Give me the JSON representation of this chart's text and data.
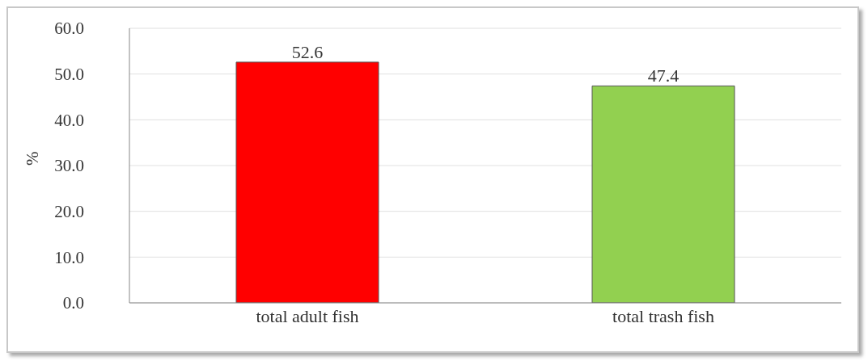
{
  "chart_data": {
    "type": "bar",
    "ylabel": "%",
    "categories": [
      "total adult  fish",
      "total trash fish"
    ],
    "values": [
      52.6,
      47.4
    ],
    "colors": [
      "#ff0000",
      "#92d050"
    ],
    "ylim": [
      0,
      60
    ],
    "yticks": [
      {
        "value": 0,
        "label": "0.0"
      },
      {
        "value": 10,
        "label": "10.0"
      },
      {
        "value": 20,
        "label": "20.0"
      },
      {
        "value": 30,
        "label": "30.0"
      },
      {
        "value": 40,
        "label": "40.0"
      },
      {
        "value": 50,
        "label": "50.0"
      },
      {
        "value": 60,
        "label": "60.0"
      }
    ],
    "grid": "y",
    "data_labels": true
  }
}
